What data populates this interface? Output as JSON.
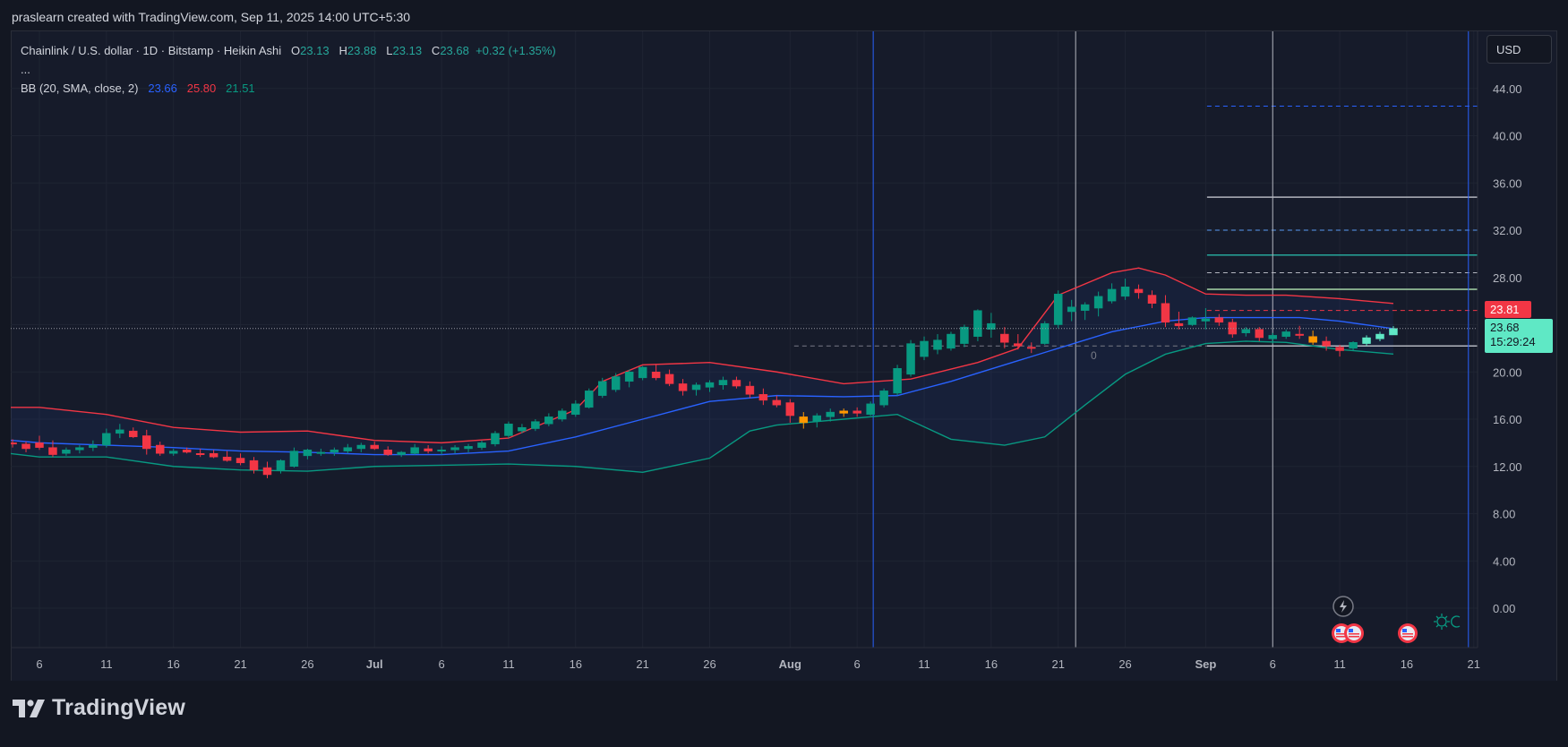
{
  "header": {
    "credit": "praslearn created with TradingView.com, Sep 11, 2025 14:00 UTC+5:30"
  },
  "legend": {
    "symbol": "Chainlink / U.S. dollar · 1D · Bitstamp · Heikin Ashi",
    "o_label": "O",
    "o_value": "23.13",
    "h_label": "H",
    "h_value": "23.88",
    "l_label": "L",
    "l_value": "23.13",
    "c_label": "C",
    "c_value": "23.68",
    "change": "+0.32 (+1.35%)",
    "more": "...",
    "bb_label": "BB (20, SMA, close, 2)",
    "bb_basis": "23.66",
    "bb_upper": "25.80",
    "bb_lower": "21.51"
  },
  "toolbar": {
    "currency": "USD"
  },
  "price_tags": {
    "red": "23.81",
    "current_price": "23.68",
    "countdown": "15:29:24"
  },
  "footer": {
    "brand": "TradingView"
  },
  "colors": {
    "up": "#089981",
    "down": "#f23645",
    "bb_basis": "#2962ff",
    "bb_upper": "#f23645",
    "bb_lower": "#089981",
    "orange": "#ff9800",
    "fresh": "#5fe8c5"
  },
  "chart_data": {
    "type": "candlestick",
    "style": "Heikin Ashi",
    "y_ticks": [
      "44.00",
      "40.00",
      "36.00",
      "32.00",
      "28.00",
      "24.00",
      "20.00",
      "16.00",
      "12.00",
      "8.00",
      "4.00",
      "0.00"
    ],
    "ylim": [
      -2.8,
      48.1
    ],
    "x_ticks": [
      {
        "label": "6",
        "t": 0,
        "bold": false
      },
      {
        "label": "11",
        "t": 5,
        "bold": false
      },
      {
        "label": "16",
        "t": 10,
        "bold": false
      },
      {
        "label": "21",
        "t": 15,
        "bold": false
      },
      {
        "label": "26",
        "t": 20,
        "bold": false
      },
      {
        "label": "Jul",
        "t": 25,
        "bold": true
      },
      {
        "label": "6",
        "t": 30,
        "bold": false
      },
      {
        "label": "11",
        "t": 35,
        "bold": false
      },
      {
        "label": "16",
        "t": 40,
        "bold": false
      },
      {
        "label": "21",
        "t": 45,
        "bold": false
      },
      {
        "label": "26",
        "t": 50,
        "bold": false
      },
      {
        "label": "Aug",
        "t": 56,
        "bold": true
      },
      {
        "label": "6",
        "t": 61,
        "bold": false
      },
      {
        "label": "11",
        "t": 66,
        "bold": false
      },
      {
        "label": "16",
        "t": 71,
        "bold": false
      },
      {
        "label": "21",
        "t": 76,
        "bold": false
      },
      {
        "label": "26",
        "t": 81,
        "bold": false
      },
      {
        "label": "Sep",
        "t": 87,
        "bold": true
      },
      {
        "label": "6",
        "t": 92,
        "bold": false
      },
      {
        "label": "11",
        "t": 97,
        "bold": false
      },
      {
        "label": "16",
        "t": 102,
        "bold": false
      },
      {
        "label": "21",
        "t": 107,
        "bold": false
      }
    ],
    "candles": [
      [
        -3,
        13.7,
        14.2,
        13.3,
        14.0
      ],
      [
        -2,
        14.0,
        14.3,
        13.6,
        13.9
      ],
      [
        -1,
        13.9,
        14.1,
        13.2,
        13.5
      ],
      [
        0,
        14.0,
        14.6,
        13.4,
        13.6
      ],
      [
        1,
        13.6,
        14.2,
        12.8,
        13.0
      ],
      [
        2,
        13.1,
        13.6,
        12.9,
        13.4
      ],
      [
        3,
        13.4,
        13.8,
        13.1,
        13.6
      ],
      [
        4,
        13.6,
        14.2,
        13.3,
        13.8
      ],
      [
        5,
        13.8,
        15.2,
        13.6,
        14.8
      ],
      [
        6,
        14.8,
        15.6,
        14.4,
        15.1
      ],
      [
        7,
        15.0,
        15.3,
        14.4,
        14.5
      ],
      [
        8,
        14.6,
        15.1,
        13.0,
        13.5
      ],
      [
        9,
        13.8,
        14.1,
        12.9,
        13.1
      ],
      [
        10,
        13.1,
        13.5,
        12.9,
        13.3
      ],
      [
        11,
        13.4,
        13.6,
        13.1,
        13.2
      ],
      [
        12,
        13.1,
        13.5,
        12.8,
        13.0
      ],
      [
        13,
        13.1,
        13.4,
        12.7,
        12.8
      ],
      [
        14,
        12.8,
        13.3,
        12.4,
        12.5
      ],
      [
        15,
        12.7,
        13.1,
        12.1,
        12.3
      ],
      [
        16,
        12.5,
        12.8,
        11.4,
        11.7
      ],
      [
        17,
        11.9,
        12.4,
        11.0,
        11.3
      ],
      [
        18,
        11.7,
        12.6,
        11.4,
        12.5
      ],
      [
        19,
        12.0,
        13.6,
        11.9,
        13.3
      ],
      [
        20,
        12.9,
        13.5,
        12.6,
        13.4
      ],
      [
        21,
        13.1,
        13.5,
        12.9,
        13.2
      ],
      [
        22,
        13.2,
        13.6,
        12.9,
        13.4
      ],
      [
        23,
        13.3,
        13.9,
        13.1,
        13.6
      ],
      [
        24,
        13.5,
        14.0,
        13.2,
        13.8
      ],
      [
        25,
        13.8,
        14.1,
        13.4,
        13.5
      ],
      [
        26,
        13.4,
        13.7,
        12.9,
        13.0
      ],
      [
        27,
        13.0,
        13.3,
        12.8,
        13.2
      ],
      [
        28,
        13.1,
        13.9,
        13.0,
        13.6
      ],
      [
        29,
        13.5,
        13.8,
        13.1,
        13.3
      ],
      [
        30,
        13.3,
        13.7,
        13.0,
        13.4
      ],
      [
        31,
        13.4,
        13.8,
        13.1,
        13.6
      ],
      [
        32,
        13.5,
        13.9,
        13.2,
        13.7
      ],
      [
        33,
        13.6,
        14.2,
        13.4,
        14.0
      ],
      [
        34,
        13.9,
        15.0,
        13.7,
        14.8
      ],
      [
        35,
        14.6,
        15.8,
        14.4,
        15.6
      ],
      [
        36,
        15.0,
        15.6,
        14.8,
        15.3
      ],
      [
        37,
        15.2,
        16.0,
        15.0,
        15.8
      ],
      [
        38,
        15.6,
        16.5,
        15.4,
        16.2
      ],
      [
        39,
        16.0,
        16.9,
        15.8,
        16.7
      ],
      [
        40,
        16.4,
        17.6,
        16.2,
        17.3
      ],
      [
        41,
        17.0,
        18.6,
        16.9,
        18.4
      ],
      [
        42,
        18.0,
        19.5,
        17.8,
        19.2
      ],
      [
        43,
        18.5,
        19.9,
        18.3,
        19.6
      ],
      [
        44,
        19.2,
        20.2,
        18.7,
        20.0
      ],
      [
        45,
        19.5,
        20.5,
        19.3,
        20.4
      ],
      [
        46,
        20.0,
        20.6,
        19.3,
        19.5
      ],
      [
        47,
        19.8,
        20.2,
        18.8,
        19.0
      ],
      [
        48,
        19.0,
        19.4,
        18.0,
        18.4
      ],
      [
        49,
        18.5,
        19.1,
        18.0,
        18.9
      ],
      [
        50,
        18.7,
        19.3,
        18.3,
        19.1
      ],
      [
        51,
        18.9,
        19.6,
        18.5,
        19.3
      ],
      [
        52,
        19.3,
        19.6,
        18.6,
        18.8
      ],
      [
        53,
        18.8,
        19.2,
        17.8,
        18.1
      ],
      [
        54,
        18.1,
        18.6,
        17.2,
        17.6
      ],
      [
        55,
        17.6,
        18.0,
        17.0,
        17.2
      ],
      [
        56,
        17.4,
        17.7,
        15.7,
        16.3
      ],
      [
        57,
        16.2,
        16.6,
        15.2,
        15.7
      ],
      [
        58,
        15.8,
        16.5,
        15.3,
        16.3
      ],
      [
        59,
        16.2,
        16.9,
        15.8,
        16.6
      ],
      [
        60,
        16.5,
        16.9,
        16.2,
        16.7
      ],
      [
        61,
        16.7,
        17.0,
        16.2,
        16.5
      ],
      [
        62,
        16.4,
        17.5,
        16.3,
        17.3
      ],
      [
        63,
        17.2,
        18.6,
        17.0,
        18.4
      ],
      [
        64,
        18.2,
        20.6,
        18.0,
        20.3
      ],
      [
        65,
        19.8,
        22.7,
        19.6,
        22.4
      ],
      [
        66,
        21.3,
        23.0,
        21.0,
        22.6
      ],
      [
        67,
        21.9,
        23.2,
        21.5,
        22.7
      ],
      [
        68,
        22.0,
        23.4,
        21.8,
        23.2
      ],
      [
        69,
        22.4,
        24.0,
        22.1,
        23.8
      ],
      [
        70,
        23.0,
        25.3,
        22.6,
        25.2
      ],
      [
        71,
        23.6,
        25.0,
        22.9,
        24.1
      ],
      [
        72,
        23.2,
        23.8,
        22.0,
        22.5
      ],
      [
        73,
        22.4,
        23.2,
        21.9,
        22.2
      ],
      [
        74,
        22.1,
        22.5,
        21.6,
        22.0
      ],
      [
        75,
        22.4,
        24.3,
        22.3,
        24.1
      ],
      [
        76,
        24.0,
        26.9,
        23.7,
        26.6
      ],
      [
        77,
        25.1,
        26.1,
        24.3,
        25.5
      ],
      [
        78,
        25.2,
        25.9,
        24.4,
        25.7
      ],
      [
        79,
        25.4,
        26.8,
        24.7,
        26.4
      ],
      [
        80,
        26.0,
        27.5,
        25.8,
        27.0
      ],
      [
        81,
        26.4,
        27.9,
        26.1,
        27.2
      ],
      [
        82,
        27.0,
        27.4,
        26.2,
        26.7
      ],
      [
        83,
        26.5,
        26.9,
        25.4,
        25.8
      ],
      [
        84,
        25.8,
        26.5,
        23.8,
        24.2
      ],
      [
        85,
        24.1,
        25.1,
        23.6,
        23.9
      ],
      [
        86,
        24.0,
        24.7,
        23.9,
        24.6
      ],
      [
        87,
        24.3,
        25.4,
        23.6,
        24.5
      ],
      [
        88,
        24.6,
        24.9,
        23.9,
        24.2
      ],
      [
        89,
        24.2,
        24.5,
        22.9,
        23.2
      ],
      [
        90,
        23.3,
        23.8,
        23.0,
        23.6
      ],
      [
        91,
        23.6,
        23.8,
        22.6,
        22.9
      ],
      [
        92,
        22.8,
        23.3,
        22.4,
        23.1
      ],
      [
        93,
        23.0,
        23.6,
        22.8,
        23.4
      ],
      [
        94,
        23.2,
        23.9,
        22.8,
        23.1
      ],
      [
        95,
        23.0,
        23.5,
        22.3,
        22.5
      ],
      [
        96,
        22.6,
        23.0,
        21.8,
        22.2
      ],
      [
        97,
        22.1,
        22.3,
        21.3,
        21.8
      ],
      [
        98,
        22.0,
        22.6,
        21.8,
        22.5
      ],
      [
        99,
        22.4,
        23.1,
        22.2,
        22.9
      ],
      [
        100,
        22.8,
        23.4,
        22.6,
        23.2
      ],
      [
        101,
        23.13,
        23.88,
        23.13,
        23.68
      ]
    ],
    "series": [
      {
        "name": "BB upper",
        "values": [
          [
            -3,
            17.0
          ],
          [
            0,
            17.0
          ],
          [
            5,
            16.4
          ],
          [
            10,
            15.3
          ],
          [
            15,
            14.9
          ],
          [
            20,
            15.0
          ],
          [
            25,
            14.2
          ],
          [
            30,
            14.0
          ],
          [
            35,
            14.4
          ],
          [
            40,
            16.8
          ],
          [
            42,
            19.2
          ],
          [
            45,
            20.6
          ],
          [
            50,
            20.8
          ],
          [
            55,
            20.0
          ],
          [
            60,
            19.0
          ],
          [
            65,
            19.4
          ],
          [
            70,
            20.8
          ],
          [
            73,
            22.0
          ],
          [
            76,
            26.5
          ],
          [
            80,
            28.4
          ],
          [
            82,
            28.8
          ],
          [
            84,
            28.2
          ],
          [
            87,
            26.6
          ],
          [
            90,
            26.5
          ],
          [
            93,
            26.5
          ],
          [
            97,
            26.2
          ],
          [
            101,
            25.8
          ]
        ]
      },
      {
        "name": "BB basis",
        "values": [
          [
            -3,
            14.3
          ],
          [
            0,
            14.0
          ],
          [
            5,
            13.8
          ],
          [
            10,
            13.6
          ],
          [
            15,
            13.3
          ],
          [
            20,
            13.2
          ],
          [
            25,
            13.0
          ],
          [
            30,
            13.0
          ],
          [
            35,
            13.3
          ],
          [
            40,
            14.5
          ],
          [
            45,
            16.0
          ],
          [
            50,
            17.5
          ],
          [
            55,
            18.0
          ],
          [
            60,
            17.9
          ],
          [
            64,
            18.0
          ],
          [
            68,
            19.2
          ],
          [
            72,
            20.6
          ],
          [
            76,
            22.0
          ],
          [
            80,
            23.4
          ],
          [
            84,
            24.3
          ],
          [
            87,
            24.6
          ],
          [
            90,
            24.6
          ],
          [
            94,
            24.6
          ],
          [
            97,
            24.3
          ],
          [
            101,
            23.66
          ]
        ]
      },
      {
        "name": "BB lower",
        "values": [
          [
            -3,
            13.2
          ],
          [
            0,
            12.8
          ],
          [
            5,
            12.8
          ],
          [
            10,
            12.0
          ],
          [
            15,
            11.7
          ],
          [
            20,
            11.6
          ],
          [
            25,
            12.0
          ],
          [
            30,
            12.1
          ],
          [
            35,
            12.2
          ],
          [
            40,
            12.0
          ],
          [
            45,
            11.5
          ],
          [
            50,
            12.7
          ],
          [
            53,
            15.0
          ],
          [
            55,
            15.5
          ],
          [
            60,
            16.0
          ],
          [
            64,
            16.4
          ],
          [
            68,
            14.3
          ],
          [
            72,
            13.8
          ],
          [
            75,
            14.5
          ],
          [
            78,
            17.2
          ],
          [
            81,
            19.8
          ],
          [
            84,
            21.5
          ],
          [
            87,
            22.4
          ],
          [
            90,
            22.6
          ],
          [
            93,
            22.5
          ],
          [
            97,
            21.9
          ],
          [
            101,
            21.51
          ]
        ]
      }
    ],
    "horizontal_levels": [
      {
        "y": 42.5,
        "style": "dashed",
        "color": "#2962ff"
      },
      {
        "y": 34.8,
        "style": "solid",
        "color": "#b2b5be"
      },
      {
        "y": 32.0,
        "style": "dashed",
        "color": "#5b9cf6"
      },
      {
        "y": 29.9,
        "style": "solid",
        "color": "#26a69a"
      },
      {
        "y": 28.4,
        "style": "dashed",
        "color": "#b2b5be"
      },
      {
        "y": 27.0,
        "style": "solid",
        "color": "#a5d6a7"
      },
      {
        "y": 25.2,
        "style": "dashed",
        "color": "#f23645"
      },
      {
        "y": 22.2,
        "style": "solid",
        "color": "#b2b5be"
      }
    ],
    "level_line_text": "0",
    "vertical_lines": [
      {
        "t": 62.2,
        "color": "#2962ff"
      },
      {
        "t": 77.3,
        "color": "#b2b5be"
      },
      {
        "t": 92.0,
        "color": "#b2b5be"
      },
      {
        "t": 106.6,
        "color": "#2962ff"
      }
    ],
    "current_price": 23.68,
    "grid": true
  }
}
